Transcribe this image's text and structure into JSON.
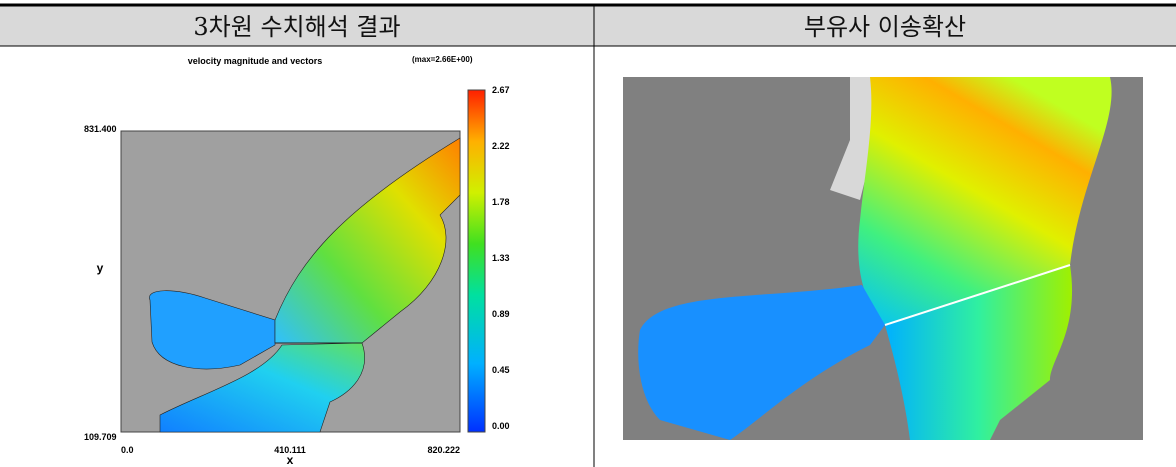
{
  "header": {
    "left": "3차원 수치해석 결과",
    "right": "부유사 이송확산"
  },
  "figure": {
    "title": "velocity magnitude and vectors",
    "note": "(max=2.66E+00)",
    "x_label": "x",
    "y_label": "y",
    "x_ticks": [
      "0.0",
      "410.111",
      "820.222"
    ],
    "y_ticks": [
      "831.400",
      "109.709"
    ],
    "colorbar_ticks": [
      "2.67",
      "2.22",
      "1.78",
      "1.33",
      "0.89",
      "0.45",
      "0.00"
    ]
  }
}
